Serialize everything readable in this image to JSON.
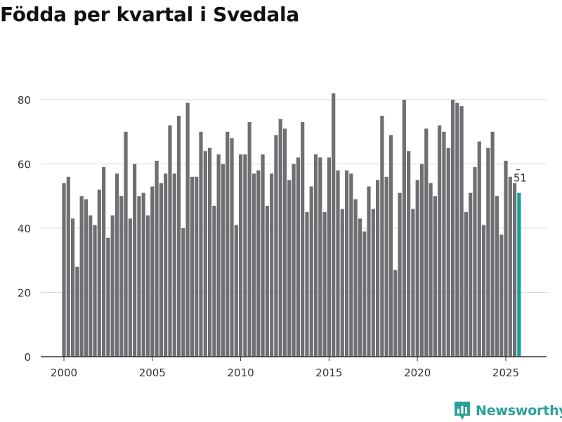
{
  "header": {
    "title": "Födda per kvartal i Svedala"
  },
  "brand": {
    "name": "Newsworthy",
    "icon": "newsworthy-logo-icon",
    "color": "#2aa199"
  },
  "colors": {
    "bar": "#6e6e73",
    "highlight": "#149f94",
    "grid": "#d9d9d9",
    "axis": "#333333"
  },
  "chart_data": {
    "type": "bar",
    "title": "Födda per kvartal i Svedala",
    "xlabel": "",
    "ylabel": "",
    "ylim": [
      0,
      85
    ],
    "yticks": [
      0,
      20,
      40,
      60,
      80
    ],
    "xticks": [
      "2000",
      "2005",
      "2010",
      "2015",
      "2020",
      "2025"
    ],
    "grid": true,
    "categories": [
      "2000 K1",
      "2000 K2",
      "2000 K3",
      "2000 K4",
      "2001 K1",
      "2001 K2",
      "2001 K3",
      "2001 K4",
      "2002 K1",
      "2002 K2",
      "2002 K3",
      "2002 K4",
      "2003 K1",
      "2003 K2",
      "2003 K3",
      "2003 K4",
      "2004 K1",
      "2004 K2",
      "2004 K3",
      "2004 K4",
      "2005 K1",
      "2005 K2",
      "2005 K3",
      "2005 K4",
      "2006 K1",
      "2006 K2",
      "2006 K3",
      "2006 K4",
      "2007 K1",
      "2007 K2",
      "2007 K3",
      "2007 K4",
      "2008 K1",
      "2008 K2",
      "2008 K3",
      "2008 K4",
      "2009 K1",
      "2009 K2",
      "2009 K3",
      "2009 K4",
      "2010 K1",
      "2010 K2",
      "2010 K3",
      "2010 K4",
      "2011 K1",
      "2011 K2",
      "2011 K3",
      "2011 K4",
      "2012 K1",
      "2012 K2",
      "2012 K3",
      "2012 K4",
      "2013 K1",
      "2013 K2",
      "2013 K3",
      "2013 K4",
      "2014 K1",
      "2014 K2",
      "2014 K3",
      "2014 K4",
      "2015 K1",
      "2015 K2",
      "2015 K3",
      "2015 K4",
      "2016 K1",
      "2016 K2",
      "2016 K3",
      "2016 K4",
      "2017 K1",
      "2017 K2",
      "2017 K3",
      "2017 K4",
      "2018 K1",
      "2018 K2",
      "2018 K3",
      "2018 K4",
      "2019 K1",
      "2019 K2",
      "2019 K3",
      "2019 K4",
      "2020 K1",
      "2020 K2",
      "2020 K3",
      "2020 K4",
      "2021 K1",
      "2021 K2",
      "2021 K3",
      "2021 K4",
      "2022 K1",
      "2022 K2",
      "2022 K3",
      "2022 K4",
      "2023 K1",
      "2023 K2",
      "2023 K3",
      "2023 K4",
      "2024 K1",
      "2024 K2",
      "2024 K3",
      "2024 K4",
      "2025 K1",
      "2025 K2",
      "2025 K3",
      "2025 K4"
    ],
    "values": [
      54,
      56,
      43,
      28,
      50,
      49,
      44,
      41,
      52,
      59,
      37,
      44,
      57,
      50,
      70,
      43,
      60,
      50,
      51,
      44,
      53,
      61,
      54,
      57,
      72,
      57,
      75,
      40,
      79,
      56,
      56,
      70,
      64,
      65,
      47,
      63,
      60,
      70,
      68,
      41,
      63,
      63,
      73,
      57,
      58,
      63,
      47,
      57,
      69,
      74,
      71,
      55,
      60,
      62,
      73,
      45,
      53,
      63,
      62,
      45,
      62,
      82,
      58,
      46,
      58,
      57,
      49,
      43,
      39,
      53,
      46,
      55,
      75,
      56,
      69,
      27,
      51,
      80,
      64,
      46,
      55,
      60,
      71,
      54,
      50,
      72,
      70,
      65,
      80,
      79,
      78,
      45,
      51,
      59,
      67,
      41,
      65,
      70,
      50,
      38,
      61,
      56,
      54,
      51
    ],
    "highlight_index": 103,
    "annotation": {
      "index": 103,
      "label": "51"
    }
  }
}
